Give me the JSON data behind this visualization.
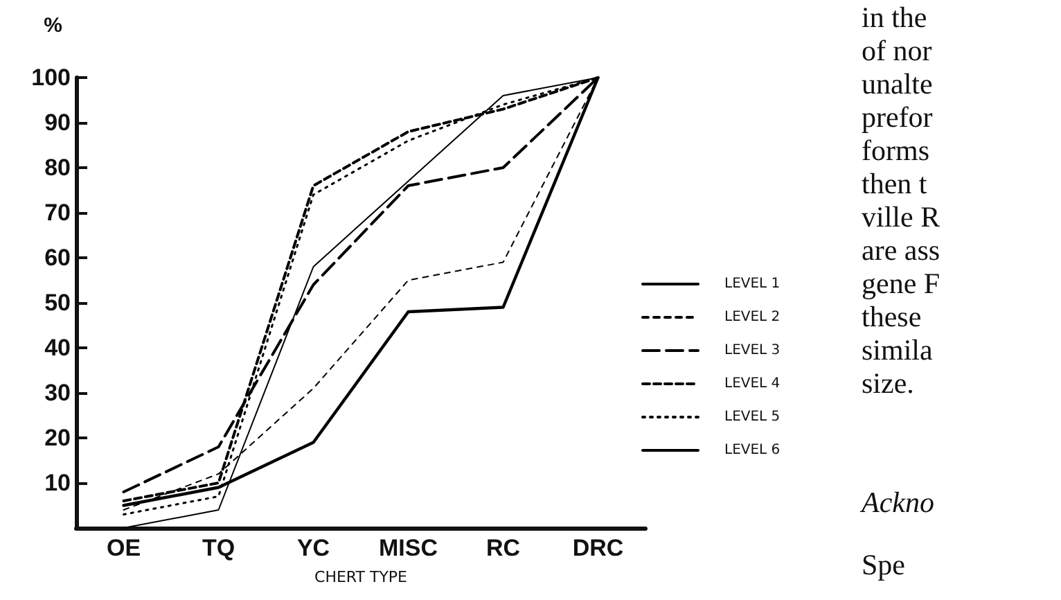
{
  "chart_data": {
    "type": "line",
    "ylabel": "%",
    "xlabel": "CHERT TYPE",
    "categories": [
      "OE",
      "TQ",
      "YC",
      "MISC",
      "RC",
      "DRC"
    ],
    "series": [
      {
        "name": "LEVEL 1",
        "color": "#000000",
        "line_style": "solid",
        "values": [
          5,
          9,
          19,
          48,
          49,
          100
        ]
      },
      {
        "name": "LEVEL 2",
        "color": "#000000",
        "line_style": "dashed",
        "values": [
          4,
          12,
          31,
          55,
          59,
          100
        ]
      },
      {
        "name": "LEVEL 3",
        "color": "#000000",
        "line_style": "dashed",
        "values": [
          8,
          18,
          54,
          76,
          80,
          100
        ]
      },
      {
        "name": "LEVEL 4",
        "color": "#000000",
        "line_style": "dashed",
        "values": [
          6,
          10,
          76,
          88,
          93,
          100
        ]
      },
      {
        "name": "LEVEL 5",
        "color": "#000000",
        "line_style": "dotted",
        "values": [
          3,
          7,
          74,
          86,
          94,
          100
        ]
      },
      {
        "name": "LEVEL 6",
        "color": "#000000",
        "line_style": "solid",
        "values": [
          0,
          4,
          58,
          77,
          96,
          100
        ]
      }
    ],
    "ylim": [
      0,
      100
    ],
    "yticks": [
      10,
      20,
      30,
      40,
      50,
      60,
      70,
      80,
      90,
      100
    ],
    "grid": false,
    "legend": "right",
    "marker": "none",
    "annotations": [
      "in the",
      "of nor",
      "unalte",
      "prefor",
      "forms",
      "then t",
      "ville R",
      "are ass",
      "gene F",
      "these",
      "simila",
      "size.",
      "Ackno",
      "Spe"
    ]
  }
}
